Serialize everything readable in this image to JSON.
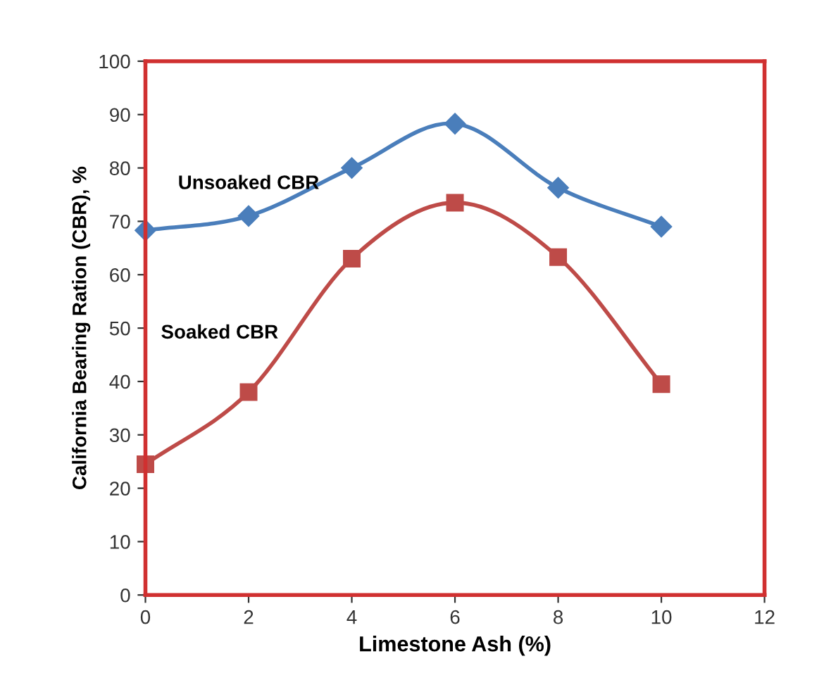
{
  "chart_data": {
    "type": "line",
    "xlabel": "Limestone Ash (%)",
    "ylabel": "California Bearing Ration (CBR), %",
    "x": [
      0,
      2,
      4,
      6,
      8,
      10
    ],
    "series": [
      {
        "name": "Unsoaked CBR",
        "color": "#4a7ebb",
        "marker": "diamond",
        "values": [
          68.3,
          71,
          80,
          88.3,
          76.3,
          69
        ]
      },
      {
        "name": "Soaked CBR",
        "color": "#be4b48",
        "marker": "square",
        "values": [
          24.5,
          38,
          63,
          73.5,
          63.3,
          39.5
        ]
      }
    ],
    "xlim": [
      0,
      12
    ],
    "xticks": [
      0,
      2,
      4,
      6,
      8,
      10,
      12
    ],
    "ylim": [
      0,
      100
    ],
    "yticks": [
      0,
      10,
      20,
      30,
      40,
      50,
      60,
      70,
      80,
      90,
      100
    ],
    "grid": false,
    "legend": false,
    "line_style": "solid"
  }
}
